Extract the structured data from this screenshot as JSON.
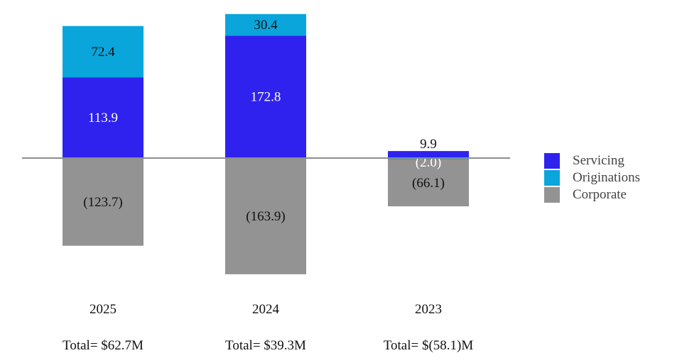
{
  "chart_data": {
    "type": "bar",
    "stacked": true,
    "categories": [
      "2025",
      "2024",
      "2023"
    ],
    "series": [
      {
        "name": "Servicing",
        "color": "#2f22ee",
        "values": [
          113.9,
          172.8,
          9.9
        ],
        "labels": [
          "113.9",
          "172.8",
          "9.9"
        ]
      },
      {
        "name": "Originations",
        "color": "#0aa5db",
        "values": [
          72.4,
          30.4,
          -2.0
        ],
        "labels": [
          "72.4",
          "30.4",
          "(2.0)"
        ]
      },
      {
        "name": "Corporate",
        "color": "#939393",
        "values": [
          -123.7,
          -163.9,
          -66.1
        ],
        "labels": [
          "(123.7)",
          "(163.9)",
          "(66.1)"
        ]
      }
    ],
    "totals": [
      "Total= $62.7M",
      "Total= $39.3M",
      "Total= $(58.1)M"
    ],
    "legend_position": "right",
    "grid": false,
    "axis_line_color": "#8c8c8c"
  }
}
